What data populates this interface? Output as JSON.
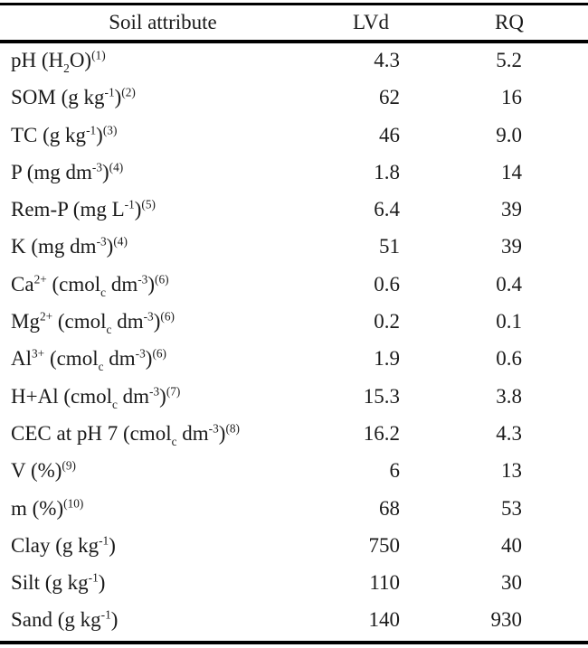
{
  "table": {
    "headers": {
      "attribute": "Soil attribute",
      "lvd": "LVd",
      "rq": "RQ"
    },
    "rows": [
      {
        "label": [
          {
            "t": "pH (H"
          },
          {
            "sub": "2"
          },
          {
            "t": "O)"
          },
          {
            "sup": "(1)"
          }
        ],
        "lvd": "4.3",
        "rq": "5.2"
      },
      {
        "label": [
          {
            "t": "SOM (g kg"
          },
          {
            "sup": "-1"
          },
          {
            "t": ")"
          },
          {
            "sup": "(2)"
          }
        ],
        "lvd": "62",
        "rq": "16"
      },
      {
        "label": [
          {
            "t": "TC (g kg"
          },
          {
            "sup": "-1"
          },
          {
            "t": ")"
          },
          {
            "sup": "(3)"
          }
        ],
        "lvd": "46",
        "rq": "9.0"
      },
      {
        "label": [
          {
            "t": "P (mg dm"
          },
          {
            "sup": "-3"
          },
          {
            "t": ")"
          },
          {
            "sup": "(4)"
          }
        ],
        "lvd": "1.8",
        "rq": "14"
      },
      {
        "label": [
          {
            "t": "Rem-P (mg L"
          },
          {
            "sup": "-1"
          },
          {
            "t": ")"
          },
          {
            "sup": "(5)"
          }
        ],
        "lvd": "6.4",
        "rq": "39"
      },
      {
        "label": [
          {
            "t": "K (mg dm"
          },
          {
            "sup": "-3"
          },
          {
            "t": ")"
          },
          {
            "sup": "(4)"
          }
        ],
        "lvd": "51",
        "rq": "39"
      },
      {
        "label": [
          {
            "t": "Ca"
          },
          {
            "sup": "2+"
          },
          {
            "t": " (cmol"
          },
          {
            "sub": "c"
          },
          {
            "t": " dm"
          },
          {
            "sup": "-3"
          },
          {
            "t": ")"
          },
          {
            "sup": "(6)"
          }
        ],
        "lvd": "0.6",
        "rq": "0.4"
      },
      {
        "label": [
          {
            "t": "Mg"
          },
          {
            "sup": "2+"
          },
          {
            "t": " (cmol"
          },
          {
            "sub": "c"
          },
          {
            "t": " dm"
          },
          {
            "sup": "-3"
          },
          {
            "t": ")"
          },
          {
            "sup": "(6)"
          }
        ],
        "lvd": "0.2",
        "rq": "0.1"
      },
      {
        "label": [
          {
            "t": "Al"
          },
          {
            "sup": "3+"
          },
          {
            "t": " (cmol"
          },
          {
            "sub": "c"
          },
          {
            "t": " dm"
          },
          {
            "sup": "-3"
          },
          {
            "t": ")"
          },
          {
            "sup": "(6)"
          }
        ],
        "lvd": "1.9",
        "rq": "0.6"
      },
      {
        "label": [
          {
            "t": "H+Al (cmol"
          },
          {
            "sub": "c"
          },
          {
            "t": " dm"
          },
          {
            "sup": "-3"
          },
          {
            "t": ")"
          },
          {
            "sup": "(7)"
          }
        ],
        "lvd": "15.3",
        "rq": "3.8"
      },
      {
        "label": [
          {
            "t": "CEC at pH 7 (cmol"
          },
          {
            "sub": "c"
          },
          {
            "t": " dm"
          },
          {
            "sup": "-3"
          },
          {
            "t": ")"
          },
          {
            "sup": "(8)"
          }
        ],
        "lvd": "16.2",
        "rq": "4.3"
      },
      {
        "label": [
          {
            "t": "V (%)"
          },
          {
            "sup": "(9)"
          }
        ],
        "lvd": "6",
        "rq": "13"
      },
      {
        "label": [
          {
            "t": "m (%)"
          },
          {
            "sup": "(10)"
          }
        ],
        "lvd": "68",
        "rq": "53"
      },
      {
        "label": [
          {
            "t": "Clay (g kg"
          },
          {
            "sup": "-1"
          },
          {
            "t": ")"
          }
        ],
        "lvd": "750",
        "rq": "40"
      },
      {
        "label": [
          {
            "t": "Silt (g kg"
          },
          {
            "sup": "-1"
          },
          {
            "t": ")"
          }
        ],
        "lvd": "110",
        "rq": "30"
      },
      {
        "label": [
          {
            "t": "Sand (g kg"
          },
          {
            "sup": "-1"
          },
          {
            "t": ")"
          }
        ],
        "lvd": "140",
        "rq": "930"
      }
    ]
  }
}
